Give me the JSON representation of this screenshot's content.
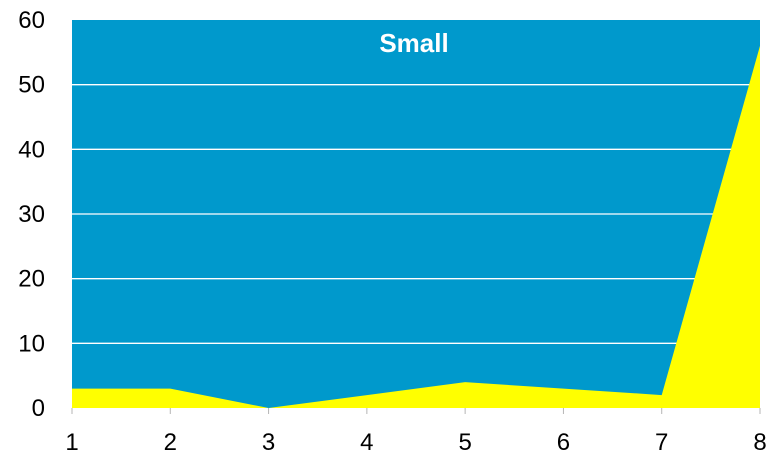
{
  "chart_data": {
    "type": "area",
    "title": "Small",
    "xlabel": "",
    "ylabel": "",
    "x": [
      1,
      2,
      3,
      4,
      5,
      6,
      7,
      8
    ],
    "series": [
      {
        "values": [
          3,
          3,
          0,
          2,
          4,
          3,
          2,
          56
        ],
        "color": "#ffff00"
      }
    ],
    "xlim": [
      1,
      8
    ],
    "ylim": [
      0,
      60
    ],
    "yticks": [
      0,
      10,
      20,
      30,
      40,
      50,
      60
    ],
    "xticks": [
      1,
      2,
      3,
      4,
      5,
      6,
      7,
      8
    ],
    "grid": true,
    "legend": "none",
    "colors": {
      "plot_background": "#0099cc",
      "gridline": "#ffffff",
      "area_fill": "#ffff00",
      "title": "#ffffff",
      "tick_label": "#000000"
    }
  }
}
